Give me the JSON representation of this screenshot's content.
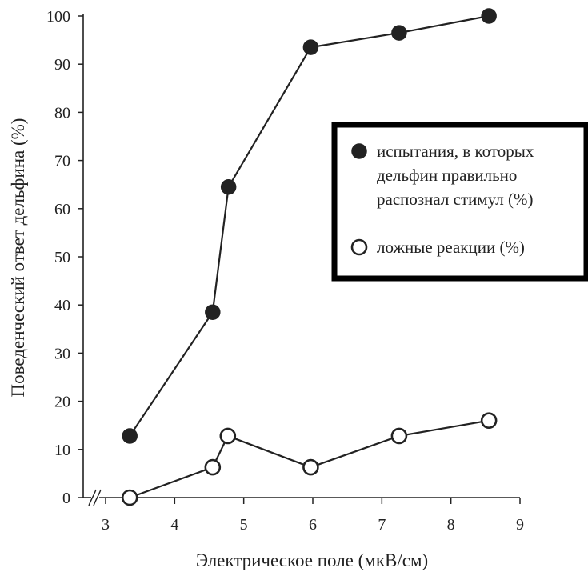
{
  "chart_data": {
    "type": "line",
    "xlabel": "Электрическое поле (мкВ/см)",
    "ylabel": "Поведенческий ответ дельфина (%)",
    "xlim": [
      3,
      9
    ],
    "ylim": [
      0,
      100
    ],
    "x_ticks": [
      "3",
      "4",
      "5",
      "6",
      "7",
      "8",
      "9"
    ],
    "y_ticks": [
      "0",
      "10",
      "20",
      "30",
      "40",
      "50",
      "60",
      "70",
      "80",
      "90",
      "100"
    ],
    "axis_break": true,
    "grid": false,
    "legend_position": "right",
    "series": [
      {
        "name": "испытания, в которых дельфин правильно распознал стимул (%)",
        "name_lines": [
          "испытания, в которых",
          "дельфин правильно",
          "распознал стимул (%)"
        ],
        "marker": "filled-circle",
        "x": [
          3.35,
          4.55,
          4.78,
          5.97,
          7.25,
          8.55
        ],
        "y": [
          12.8,
          38.5,
          64.5,
          93.5,
          96.5,
          100
        ]
      },
      {
        "name": "ложные реакции  (%)",
        "name_lines": [
          "ложные реакции  (%)"
        ],
        "marker": "open-circle",
        "x": [
          3.35,
          4.55,
          4.77,
          5.97,
          7.25,
          8.55
        ],
        "y": [
          0,
          6.3,
          12.8,
          6.3,
          12.8,
          16
        ]
      }
    ]
  },
  "colors": {
    "ink": "#222222",
    "background": "#ffffff"
  }
}
